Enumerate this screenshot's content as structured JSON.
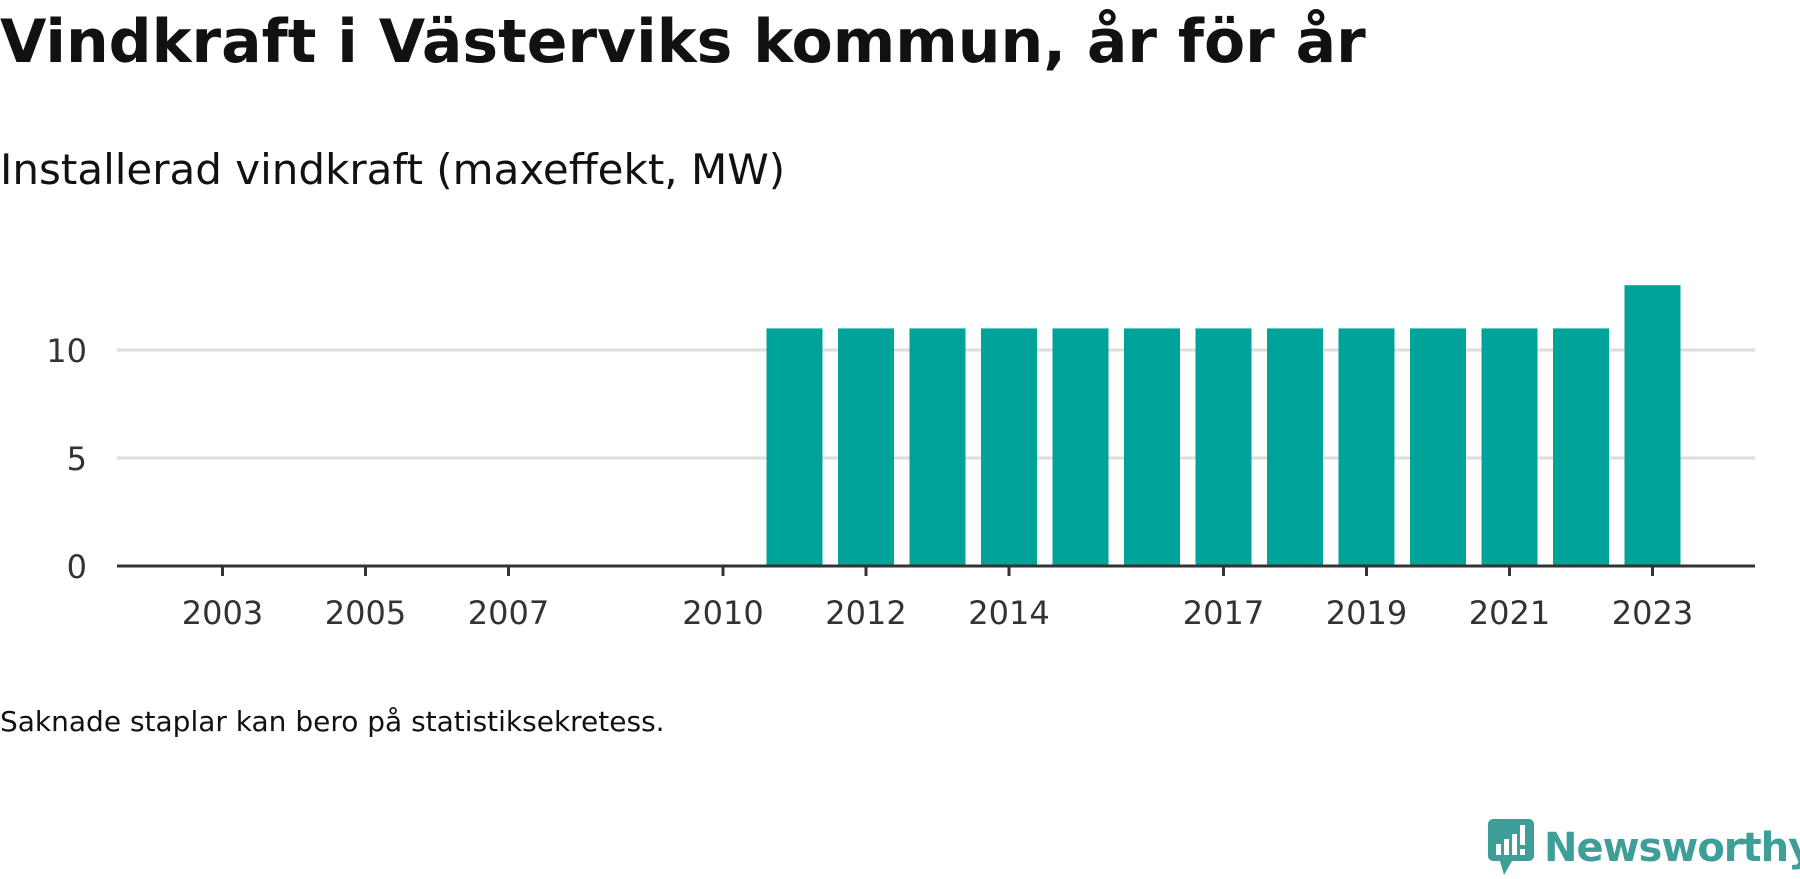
{
  "header": {
    "title": "Vindkraft i Västerviks kommun, år för år",
    "subtitle": "Installerad vindkraft (maxeffekt, MW)"
  },
  "footer": {
    "note": "Saknade staplar kan bero på statistiksekretess.",
    "logo_text": "Newsworthy",
    "logo_icon": "newsworthy-logo-icon"
  },
  "colors": {
    "bar": "#00a39a",
    "grid": "#dddddd",
    "axis": "#333333",
    "text": "#333333",
    "logo": "#3e9e98"
  },
  "chart_data": {
    "type": "bar",
    "title": "Vindkraft i Västerviks kommun, år för år",
    "subtitle": "Installerad vindkraft (maxeffekt, MW)",
    "xlabel": "",
    "ylabel": "",
    "grid": true,
    "ylim": [
      0,
      13.5
    ],
    "xlim": [
      2001.5,
      2024.5
    ],
    "yticks": [
      0,
      5,
      10
    ],
    "xticks": [
      2003,
      2005,
      2007,
      2010,
      2012,
      2014,
      2017,
      2019,
      2021,
      2023
    ],
    "categories": [
      2011,
      2012,
      2013,
      2014,
      2015,
      2016,
      2017,
      2018,
      2019,
      2020,
      2021,
      2022,
      2023
    ],
    "values": [
      11,
      11,
      11,
      11,
      11,
      11,
      11,
      11,
      11,
      11,
      11,
      11,
      13
    ]
  }
}
